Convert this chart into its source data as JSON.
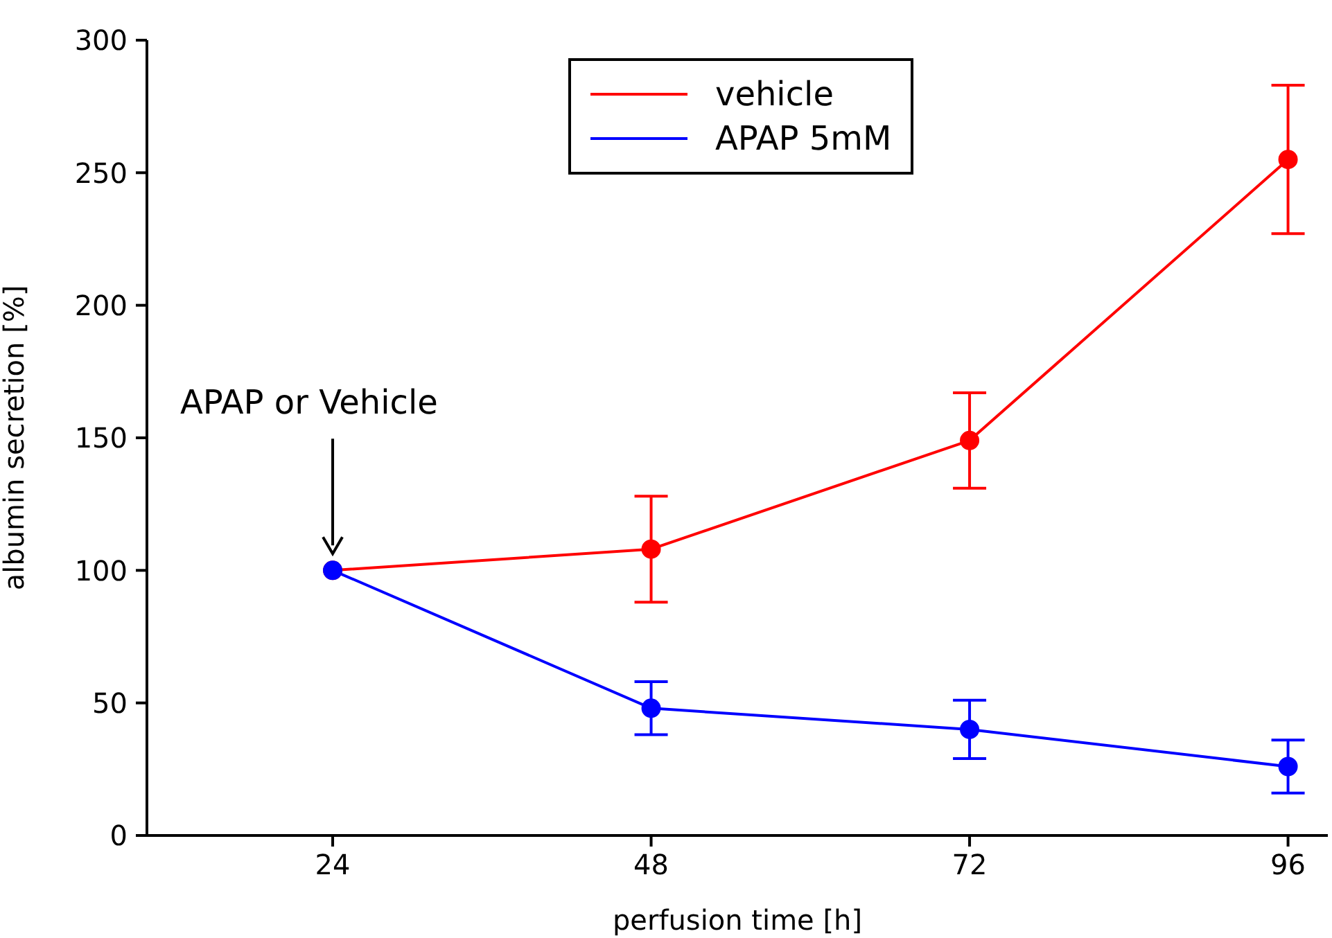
{
  "chart_data": {
    "type": "line",
    "xlabel": "perfusion time [h]",
    "ylabel": "albumin secretion [%]",
    "x": [
      24,
      48,
      72,
      96
    ],
    "series": [
      {
        "name": "vehicle",
        "color": "#ff0000",
        "values": [
          100,
          108,
          149,
          255
        ],
        "errors": [
          null,
          20,
          18,
          28
        ]
      },
      {
        "name": "APAP 5mM",
        "color": "#0000ff",
        "values": [
          100,
          48,
          40,
          26
        ],
        "errors": [
          null,
          10,
          11,
          10
        ]
      }
    ],
    "xlim": [
      10,
      99
    ],
    "xticks": [
      24,
      48,
      72,
      96
    ],
    "ylim": [
      0,
      300
    ],
    "yticks": [
      0,
      50,
      100,
      150,
      200,
      250,
      300
    ],
    "annotations": [
      "APAP or Vehicle"
    ],
    "grid": false,
    "legend": "top",
    "marker": "circle",
    "line_style": "solid"
  }
}
